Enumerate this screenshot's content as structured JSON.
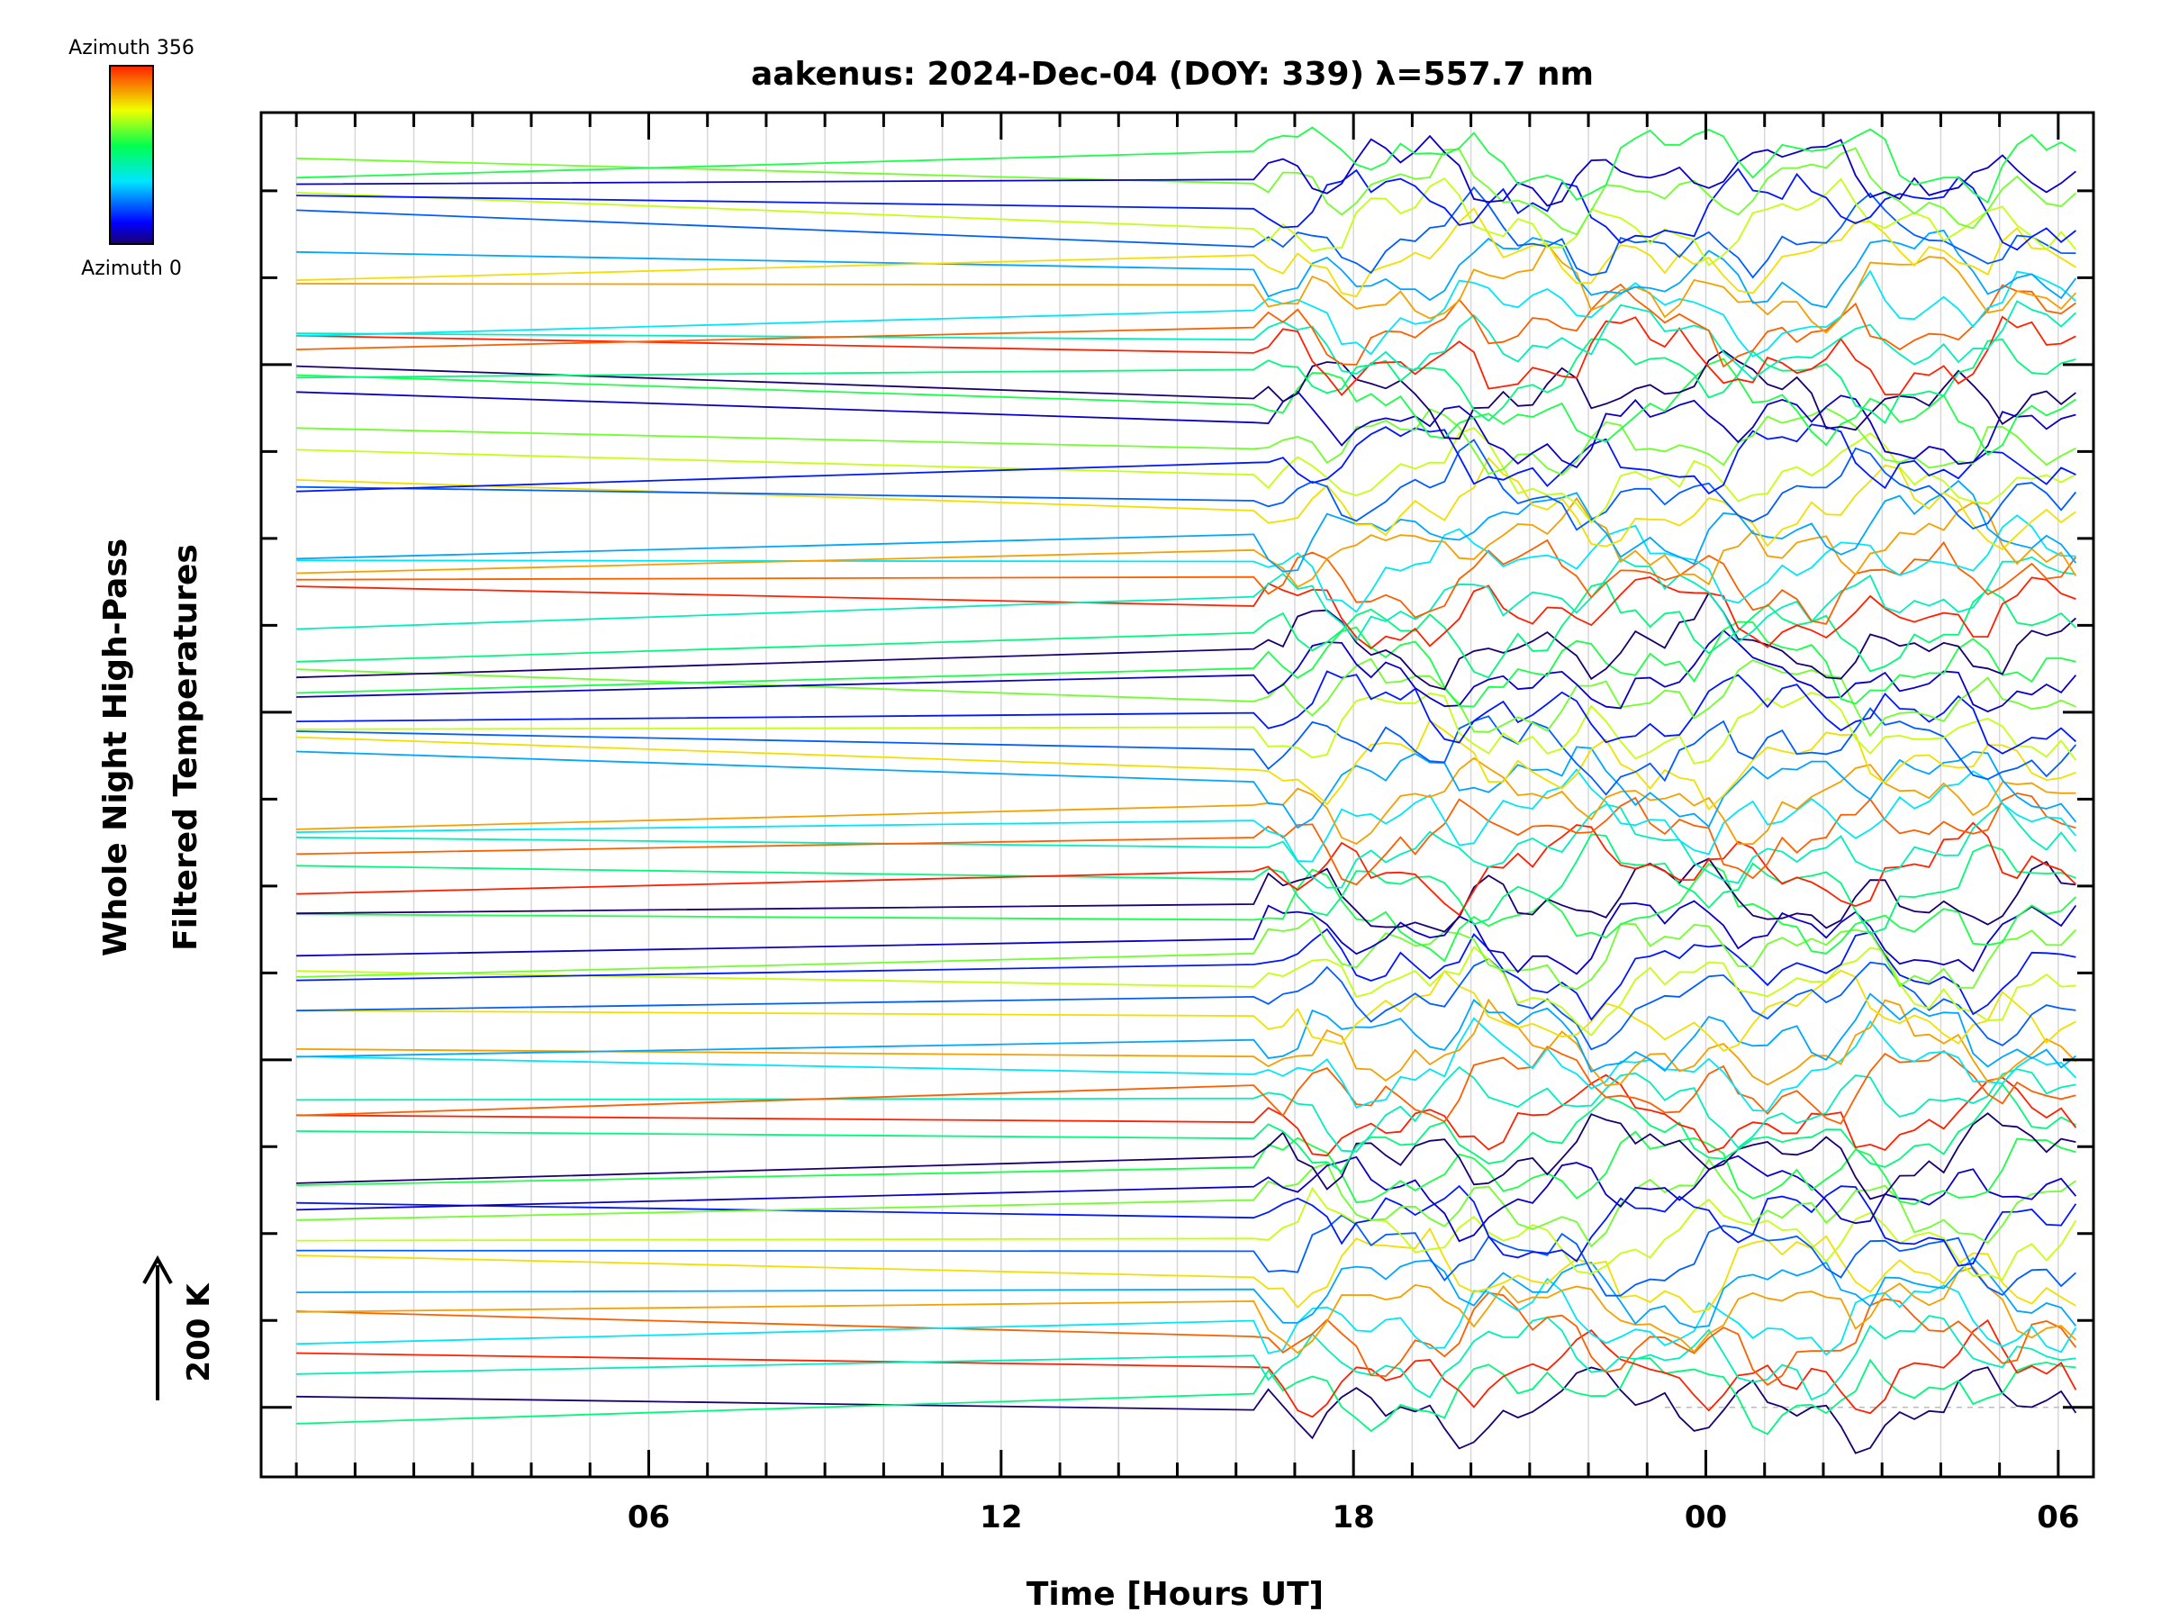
{
  "chart_data": {
    "type": "line",
    "title": "aakenus: 2024-Dec-04 (DOY: 339) λ=557.7 nm",
    "xlabel": "Time [Hours UT]",
    "ylabel_line1": "Whole Night High-Pass",
    "ylabel_line2": "Filtered Temperatures",
    "xlim": [
      -0.6,
      30.6
    ],
    "x_major_ticks": [
      6,
      12,
      18,
      24,
      30
    ],
    "x_tick_labels": [
      "06",
      "12",
      "18",
      "00",
      "06"
    ],
    "x_minor_step": 1,
    "ylim": [
      -0.8,
      14.9
    ],
    "y_major_ticks": [
      0,
      4,
      8,
      12
    ],
    "y_minor_ticks": [
      1,
      2,
      3,
      5,
      6,
      7,
      9,
      10,
      11,
      13,
      14
    ],
    "scale_arrow_label": "200 K",
    "colorbar": {
      "top_label": "Azimuth 356",
      "bottom_label": "Azimuth 0",
      "colors": [
        "#000080",
        "#0000ff",
        "#00ffff",
        "#00ff00",
        "#ffff00",
        "#ff0000"
      ]
    },
    "grid": true,
    "legend": "colorbar top-left",
    "series_count": 75,
    "gap_start": 0,
    "gap_end": 16.3,
    "data_end": 30.3,
    "y_start": 14.4,
    "y_end": 0.0
  }
}
